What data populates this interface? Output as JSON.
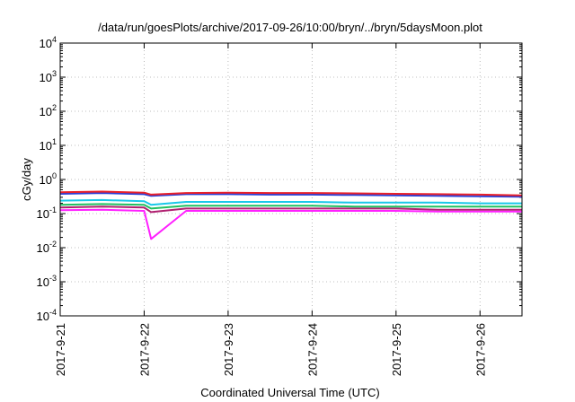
{
  "chart_data": {
    "type": "line",
    "title": "/data/run/goesPlots/archive/2017-09-26/10:00/bryn/../bryn/5daysMoon.plot",
    "xlabel": "Coordinated Universal Time (UTC)",
    "ylabel": "cGy/day",
    "y_scale": "log",
    "ylim": [
      0.0001,
      10000
    ],
    "xlim": [
      "2017-09-21",
      "2017-09-26 12:00"
    ],
    "x_tick_labels": [
      "2017-9-21",
      "2017-9-22",
      "2017-9-23",
      "2017-9-24",
      "2017-9-25",
      "2017-9-26"
    ],
    "y_ticks": [
      {
        "base": "10",
        "exp": "-4"
      },
      {
        "base": "10",
        "exp": "-3"
      },
      {
        "base": "10",
        "exp": "-2"
      },
      {
        "base": "10",
        "exp": "-1"
      },
      {
        "base": "10",
        "exp": "0"
      },
      {
        "base": "10",
        "exp": "1"
      },
      {
        "base": "10",
        "exp": "2"
      },
      {
        "base": "10",
        "exp": "3"
      },
      {
        "base": "10",
        "exp": "4"
      }
    ],
    "grid": true,
    "x": [
      "2017-09-21 00:00",
      "2017-09-21 12:00",
      "2017-09-22 00:00",
      "2017-09-22 02:00",
      "2017-09-22 12:00",
      "2017-09-23 00:00",
      "2017-09-23 12:00",
      "2017-09-24 00:00",
      "2017-09-24 12:00",
      "2017-09-25 00:00",
      "2017-09-25 12:00",
      "2017-09-26 00:00",
      "2017-09-26 12:00"
    ],
    "series": [
      {
        "color": "#e8202a",
        "values": [
          0.42,
          0.44,
          0.41,
          0.36,
          0.4,
          0.41,
          0.4,
          0.4,
          0.39,
          0.38,
          0.37,
          0.36,
          0.34
        ]
      },
      {
        "color": "#2a40d8",
        "values": [
          0.38,
          0.4,
          0.37,
          0.33,
          0.37,
          0.37,
          0.36,
          0.36,
          0.35,
          0.34,
          0.33,
          0.32,
          0.31
        ]
      },
      {
        "color": "#18c8e8",
        "values": [
          0.24,
          0.25,
          0.23,
          0.18,
          0.22,
          0.22,
          0.22,
          0.22,
          0.21,
          0.21,
          0.21,
          0.2,
          0.2
        ]
      },
      {
        "color": "#20c060",
        "values": [
          0.18,
          0.19,
          0.18,
          0.14,
          0.17,
          0.17,
          0.17,
          0.17,
          0.16,
          0.16,
          0.16,
          0.16,
          0.16
        ]
      },
      {
        "color": "#b02070",
        "values": [
          0.15,
          0.16,
          0.15,
          0.11,
          0.14,
          0.14,
          0.14,
          0.14,
          0.14,
          0.14,
          0.13,
          0.13,
          0.13
        ]
      },
      {
        "color": "#ff20ff",
        "values": [
          0.125,
          0.13,
          0.12,
          0.018,
          0.12,
          0.12,
          0.12,
          0.12,
          0.12,
          0.12,
          0.115,
          0.115,
          0.115
        ]
      }
    ]
  }
}
